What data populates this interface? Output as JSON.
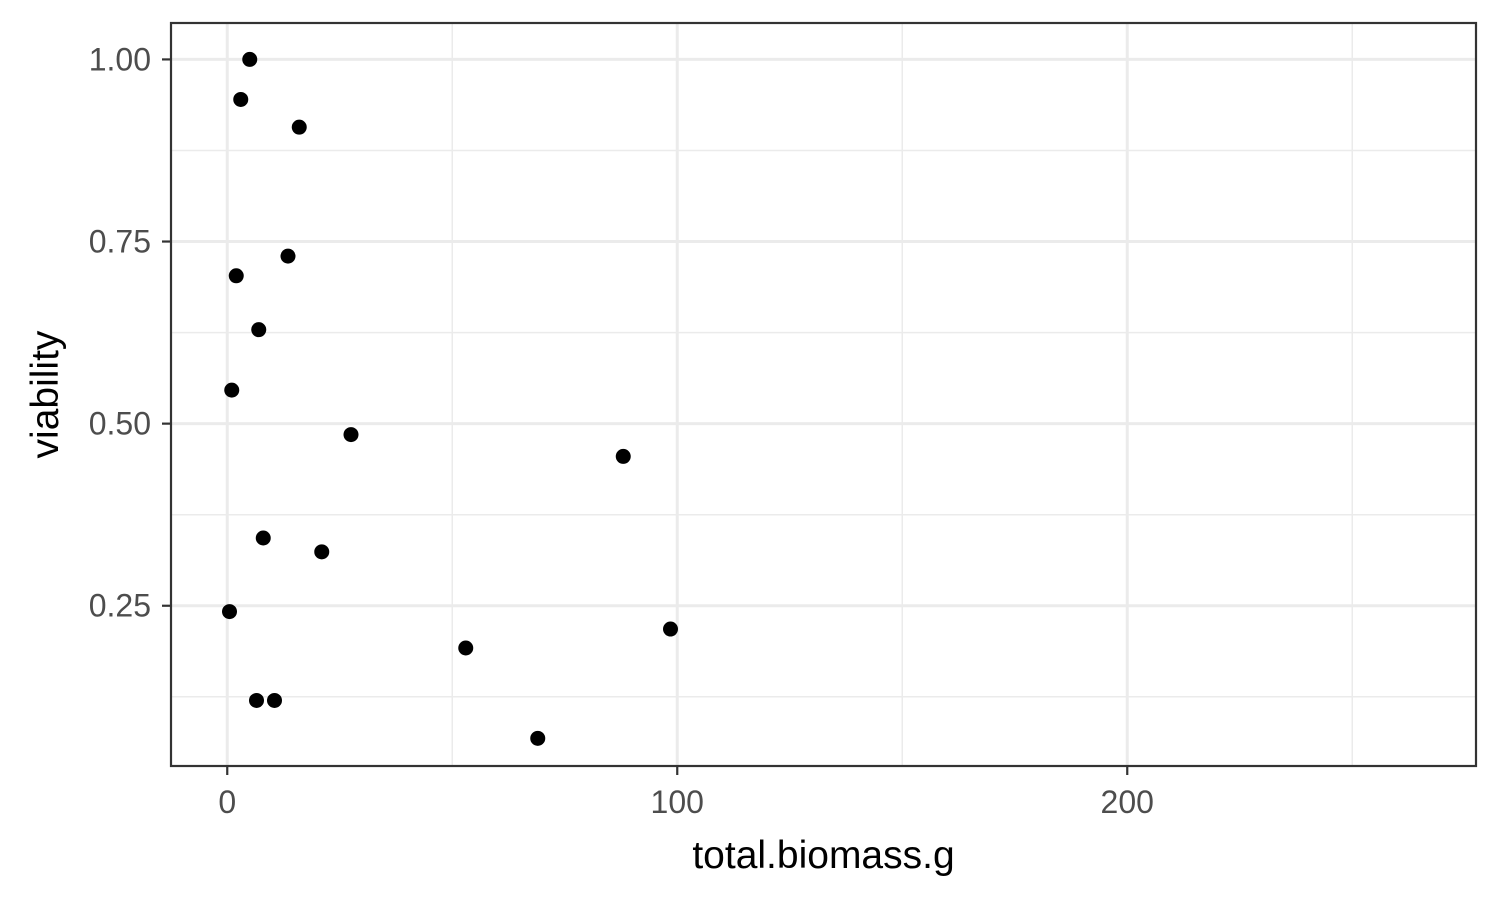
{
  "chart_data": {
    "type": "scatter",
    "xlabel": "total.biomass.g",
    "ylabel": "viability",
    "xlim": [
      -12.5,
      277.5
    ],
    "ylim": [
      0.03,
      1.05
    ],
    "x_ticks": [
      {
        "value": 0,
        "label": "0"
      },
      {
        "value": 100,
        "label": "100"
      },
      {
        "value": 200,
        "label": "200"
      }
    ],
    "x_minor_ticks": [
      50,
      150,
      250
    ],
    "y_ticks": [
      {
        "value": 0.25,
        "label": "0.25"
      },
      {
        "value": 0.5,
        "label": "0.50"
      },
      {
        "value": 0.75,
        "label": "0.75"
      },
      {
        "value": 1.0,
        "label": "1.00"
      }
    ],
    "y_minor_ticks": [
      0.125,
      0.375,
      0.625,
      0.875
    ],
    "grid": true,
    "legend": "none",
    "point_color": "#000000",
    "points": [
      {
        "x": 5.0,
        "y": 1.0
      },
      {
        "x": 3.0,
        "y": 0.945
      },
      {
        "x": 16.0,
        "y": 0.907
      },
      {
        "x": 13.5,
        "y": 0.73
      },
      {
        "x": 2.0,
        "y": 0.703
      },
      {
        "x": 7.0,
        "y": 0.629
      },
      {
        "x": 1.0,
        "y": 0.546
      },
      {
        "x": 27.5,
        "y": 0.485
      },
      {
        "x": 88.0,
        "y": 0.455
      },
      {
        "x": 8.0,
        "y": 0.343
      },
      {
        "x": 21.0,
        "y": 0.324
      },
      {
        "x": 0.5,
        "y": 0.242
      },
      {
        "x": 98.5,
        "y": 0.218
      },
      {
        "x": 53.0,
        "y": 0.192
      },
      {
        "x": 6.5,
        "y": 0.12
      },
      {
        "x": 10.5,
        "y": 0.12
      },
      {
        "x": 69.0,
        "y": 0.068
      }
    ]
  }
}
